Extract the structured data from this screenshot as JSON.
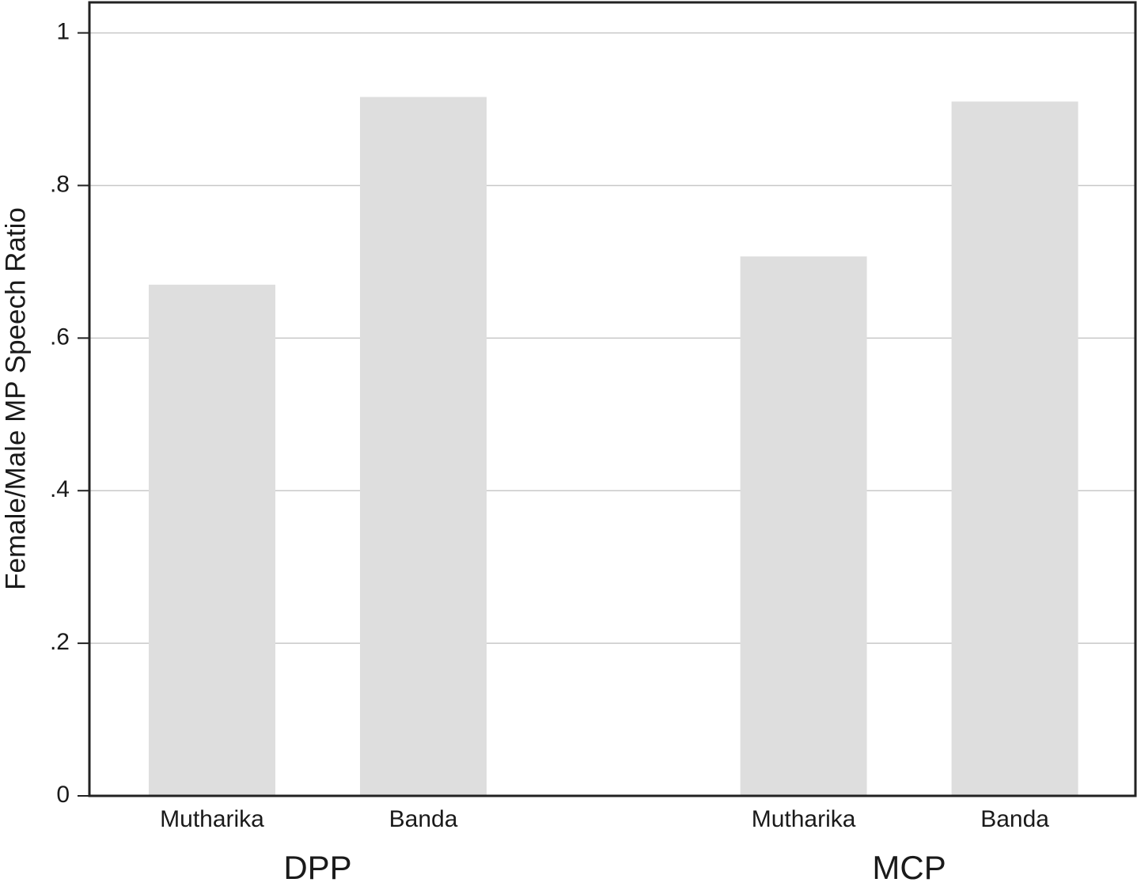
{
  "chart_data": {
    "type": "bar",
    "ylabel": "Female/Male MP Speech Ratio",
    "groups": [
      {
        "name": "DPP",
        "categories": [
          "Mutharika",
          "Banda"
        ],
        "values": [
          0.67,
          0.916
        ]
      },
      {
        "name": "MCP",
        "categories": [
          "Mutharika",
          "Banda"
        ],
        "values": [
          0.707,
          0.91
        ]
      }
    ],
    "color": "#dedede",
    "ylim": [
      0,
      1.04
    ],
    "yticks": [
      0,
      {
        "value": 0.2,
        "label": ".2"
      },
      {
        "value": 0.4,
        "label": ".4"
      },
      {
        "value": 0.6,
        "label": ".6"
      },
      {
        "value": 0.8,
        "label": ".8"
      },
      1
    ],
    "grid": true
  }
}
